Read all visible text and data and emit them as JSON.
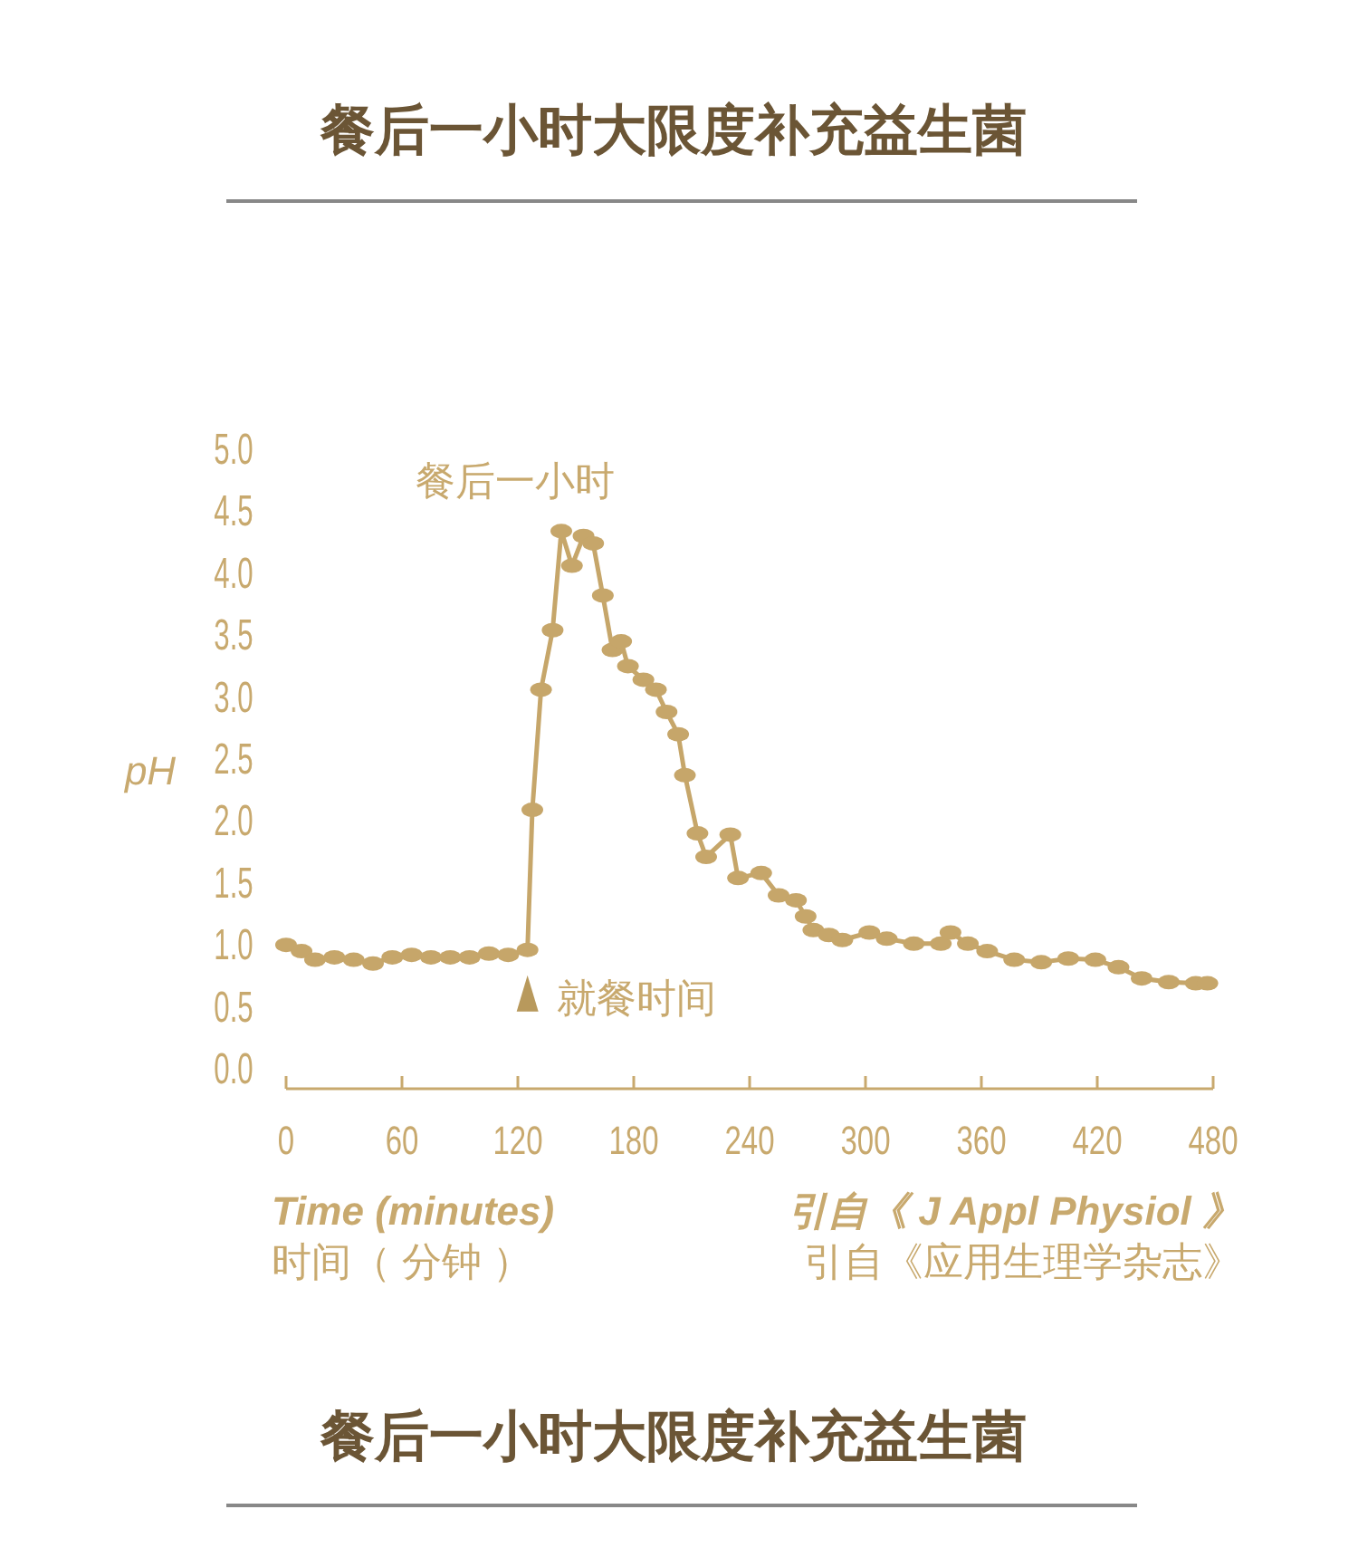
{
  "chart_data": {
    "type": "line",
    "title": "餐后一小时大限度补充益生菌",
    "xlabel": "Time (minutes)\n时间（ 分钟 ）",
    "ylabel": "pH",
    "annotations": [
      {
        "text": "餐后一小时",
        "x": 142,
        "y": 4.34
      },
      {
        "text": "就餐时间",
        "x": 125,
        "y": 0.96
      },
      "引自《 J Appl Physiol 》",
      "引自《应用生理学杂志》",
      "餐后一小时大限度补充益生菌"
    ],
    "x": [
      0,
      8,
      15,
      25,
      35,
      45,
      55,
      65,
      75,
      85,
      95,
      105,
      115,
      125,
      127.5,
      132,
      138,
      142.5,
      148,
      154,
      159,
      164,
      169,
      173.5,
      177,
      185,
      191.5,
      197,
      203,
      206.5,
      213,
      217.5,
      230,
      234,
      246,
      255,
      264,
      269,
      273,
      281,
      288,
      302,
      311,
      325,
      339,
      344,
      353,
      363,
      377,
      391,
      405,
      419,
      431,
      443,
      457,
      471,
      477
    ],
    "series": [
      {
        "color": "#c6a66a",
        "values": [
          1.0,
          0.95,
          0.88,
          0.9,
          0.88,
          0.85,
          0.9,
          0.92,
          0.9,
          0.9,
          0.9,
          0.93,
          0.92,
          0.96,
          2.09,
          3.06,
          3.54,
          4.34,
          4.06,
          4.3,
          4.24,
          3.82,
          3.38,
          3.45,
          3.25,
          3.14,
          3.06,
          2.88,
          2.7,
          2.37,
          1.9,
          1.71,
          1.89,
          1.54,
          1.58,
          1.4,
          1.36,
          1.23,
          1.12,
          1.08,
          1.04,
          1.1,
          1.05,
          1.01,
          1.01,
          1.1,
          1.01,
          0.95,
          0.88,
          0.86,
          0.89,
          0.88,
          0.82,
          0.73,
          0.7,
          0.69,
          0.69
        ]
      }
    ],
    "xlim": [
      0,
      480
    ],
    "xticks": [
      0,
      60,
      120,
      180,
      240,
      300,
      360,
      420,
      480
    ],
    "ylim": [
      0,
      5
    ],
    "yticks": [
      {
        "value": 0,
        "label": "0.0"
      },
      {
        "value": 0.5,
        "label": "0.5"
      },
      {
        "value": 1,
        "label": "1.0"
      },
      {
        "value": 1.5,
        "label": "1.5"
      },
      {
        "value": 2,
        "label": "2.0"
      },
      {
        "value": 2.5,
        "label": "2.5"
      },
      {
        "value": 3,
        "label": "3.0"
      },
      {
        "value": 3.5,
        "label": "3.5"
      },
      {
        "value": 4,
        "label": "4.0"
      },
      {
        "value": 4.5,
        "label": "4.5"
      },
      {
        "value": 5,
        "label": "5.0"
      }
    ],
    "grid": false,
    "marker": "circle",
    "line_style": "solid"
  }
}
